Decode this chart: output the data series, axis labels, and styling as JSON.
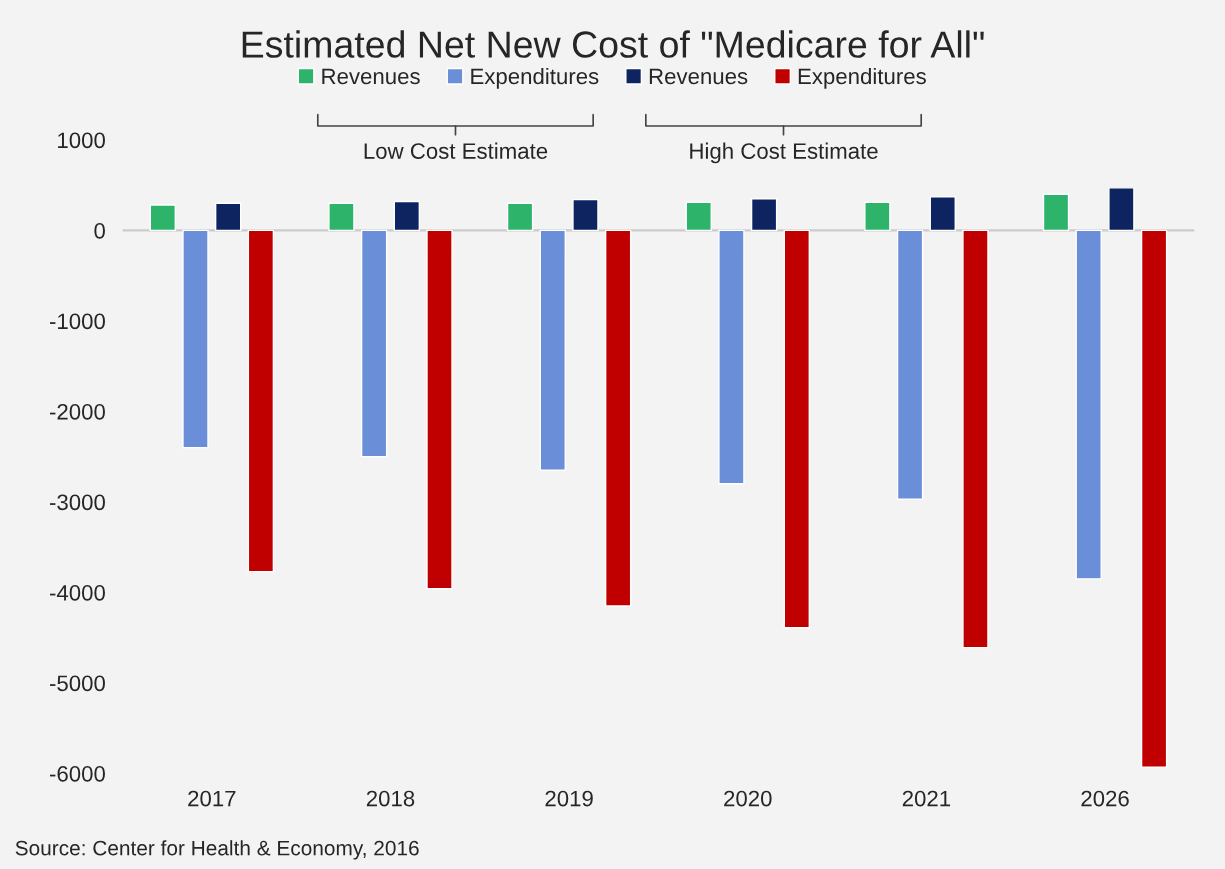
{
  "chart_data": {
    "type": "bar",
    "title": "Estimated Net New Cost of \"Medicare for All\"",
    "categories": [
      "2017",
      "2018",
      "2019",
      "2020",
      "2021",
      "2026"
    ],
    "series": [
      {
        "name": "Revenues",
        "color": "#2db36a",
        "values": [
          280,
          300,
          300,
          310,
          310,
          400
        ]
      },
      {
        "name": "Expenditures",
        "color": "#6a8fd8",
        "values": [
          -2400,
          -2500,
          -2650,
          -2800,
          -2970,
          -3850
        ]
      },
      {
        "name": "Revenues",
        "color": "#0d2460",
        "values": [
          300,
          320,
          340,
          350,
          370,
          470
        ]
      },
      {
        "name": "Expenditures",
        "color": "#c00000",
        "values": [
          -3770,
          -3960,
          -4150,
          -4390,
          -4610,
          -5930
        ]
      }
    ],
    "ylim": [
      -6000,
      1000
    ],
    "yticks": [
      -6000,
      -5000,
      -4000,
      -3000,
      -2000,
      -1000,
      0,
      1000
    ],
    "ref_lines": [
      {
        "axis": "y",
        "value": 0,
        "color": "#cccccc"
      }
    ],
    "legend": "top",
    "grid": false,
    "annotations": [
      "Low Cost Estimate",
      "High Cost Estimate",
      "Source: Center for Health & Economy, 2016"
    ]
  }
}
